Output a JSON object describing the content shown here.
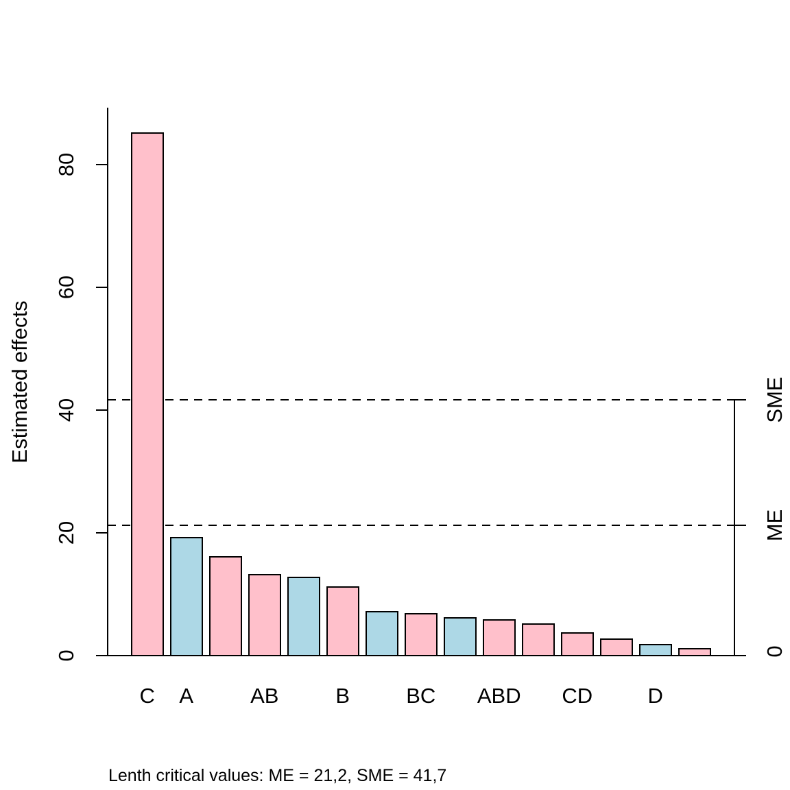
{
  "figure": {
    "background_color": "#FFFFFF",
    "line_color": "#000000"
  },
  "chart_data": {
    "type": "bar",
    "title": "",
    "xlabel": "",
    "ylabel": "Estimated effects",
    "ylim": [
      0,
      89
    ],
    "yticks": [
      0,
      20,
      40,
      60,
      80
    ],
    "grid": false,
    "legend": "none",
    "bar_colors": {
      "pink": "#FFC0CB",
      "lightblue": "#ADD8E6"
    },
    "bars": [
      {
        "label": "C",
        "value": 85.2,
        "color": "#FFC0CB"
      },
      {
        "label": "A",
        "value": 19.3,
        "color": "#ADD8E6"
      },
      {
        "label": "",
        "value": 16.2,
        "color": "#FFC0CB"
      },
      {
        "label": "AB",
        "value": 13.3,
        "color": "#FFC0CB"
      },
      {
        "label": "",
        "value": 12.8,
        "color": "#ADD8E6"
      },
      {
        "label": "B",
        "value": 11.3,
        "color": "#FFC0CB"
      },
      {
        "label": "",
        "value": 7.3,
        "color": "#ADD8E6"
      },
      {
        "label": "BC",
        "value": 6.9,
        "color": "#FFC0CB"
      },
      {
        "label": "",
        "value": 6.3,
        "color": "#ADD8E6"
      },
      {
        "label": "ABD",
        "value": 5.9,
        "color": "#FFC0CB"
      },
      {
        "label": "",
        "value": 5.3,
        "color": "#FFC0CB"
      },
      {
        "label": "CD",
        "value": 3.8,
        "color": "#FFC0CB"
      },
      {
        "label": "",
        "value": 2.8,
        "color": "#FFC0CB"
      },
      {
        "label": "D",
        "value": 1.9,
        "color": "#ADD8E6"
      },
      {
        "label": "",
        "value": 1.2,
        "color": "#FFC0CB"
      }
    ],
    "reference_lines": [
      {
        "name": "ME",
        "value": 21.2,
        "style": "dashed"
      },
      {
        "name": "SME",
        "value": 41.7,
        "style": "dashed"
      }
    ],
    "right_axis": {
      "labels": [
        "SME",
        "ME",
        "0"
      ],
      "tick_values": [
        41.7,
        21.2,
        0
      ]
    },
    "caption": "Lenth critical values: ME = 21,2, SME = 41,7"
  }
}
